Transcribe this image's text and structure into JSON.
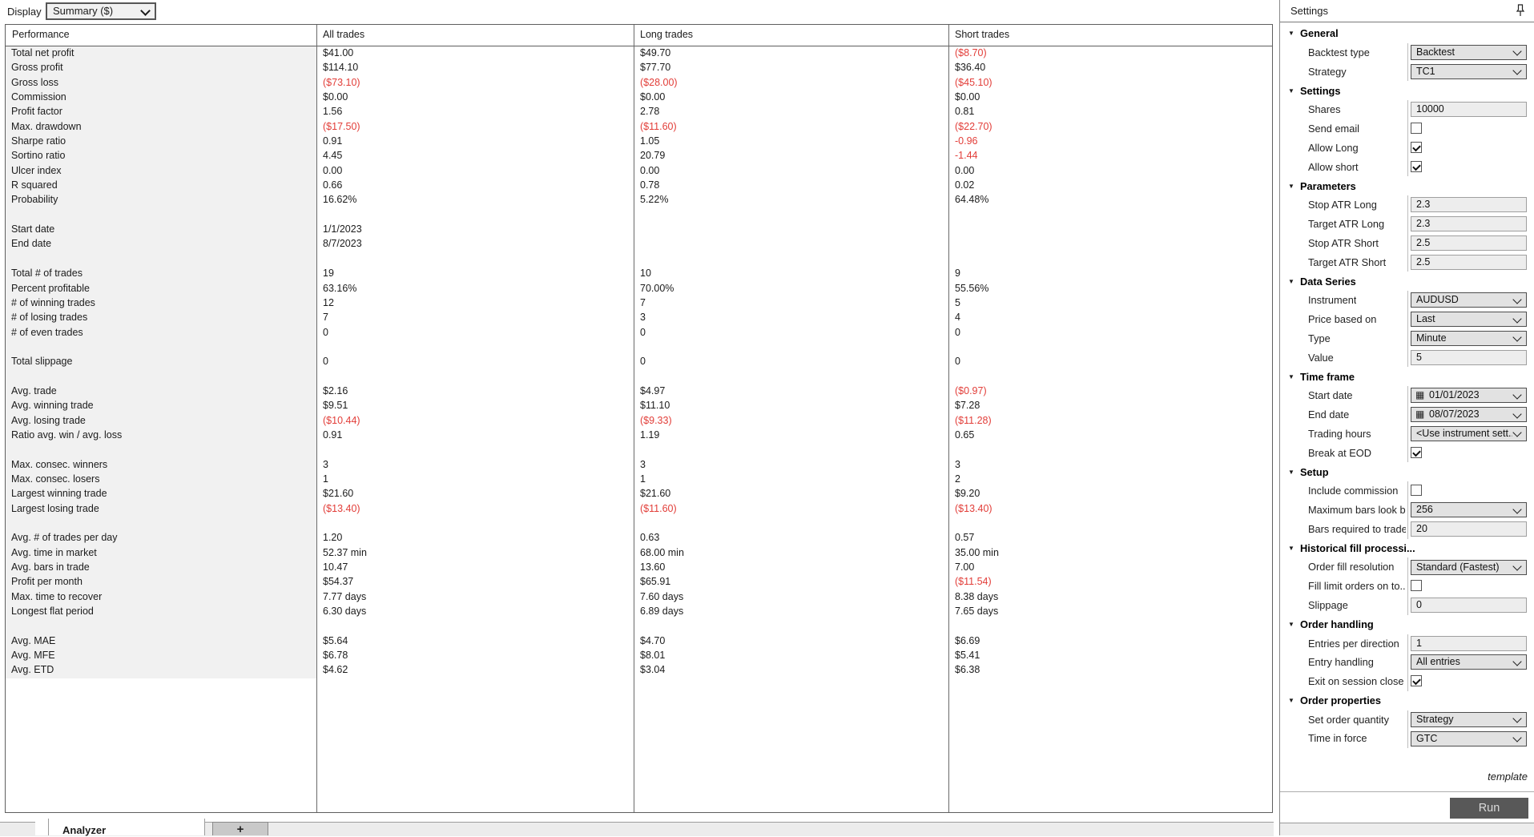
{
  "toolbar": {
    "display_label": "Display",
    "display_value": "Summary ($)"
  },
  "report": {
    "headers": [
      "Performance",
      "All trades",
      "Long trades",
      "Short trades"
    ],
    "rows": [
      {
        "label": "Total net profit",
        "all": "$41.00",
        "long": "$49.70",
        "short": "($8.70)"
      },
      {
        "label": "Gross profit",
        "all": "$114.10",
        "long": "$77.70",
        "short": "$36.40"
      },
      {
        "label": "Gross loss",
        "all": "($73.10)",
        "long": "($28.00)",
        "short": "($45.10)"
      },
      {
        "label": "Commission",
        "all": "$0.00",
        "long": "$0.00",
        "short": "$0.00"
      },
      {
        "label": "Profit factor",
        "all": "1.56",
        "long": "2.78",
        "short": "0.81"
      },
      {
        "label": "Max. drawdown",
        "all": "($17.50)",
        "long": "($11.60)",
        "short": "($22.70)"
      },
      {
        "label": "Sharpe ratio",
        "all": "0.91",
        "long": "1.05",
        "short": "-0.96"
      },
      {
        "label": "Sortino ratio",
        "all": "4.45",
        "long": "20.79",
        "short": "-1.44"
      },
      {
        "label": "Ulcer index",
        "all": "0.00",
        "long": "0.00",
        "short": "0.00"
      },
      {
        "label": "R squared",
        "all": "0.66",
        "long": "0.78",
        "short": "0.02"
      },
      {
        "label": "Probability",
        "all": "16.62%",
        "long": "5.22%",
        "short": "64.48%"
      },
      {
        "spacer": true
      },
      {
        "label": "Start date",
        "all": "1/1/2023",
        "long": "",
        "short": ""
      },
      {
        "label": "End date",
        "all": "8/7/2023",
        "long": "",
        "short": ""
      },
      {
        "spacer": true
      },
      {
        "label": "Total # of trades",
        "all": "19",
        "long": "10",
        "short": "9"
      },
      {
        "label": "Percent profitable",
        "all": "63.16%",
        "long": "70.00%",
        "short": "55.56%"
      },
      {
        "label": "# of winning trades",
        "all": "12",
        "long": "7",
        "short": "5"
      },
      {
        "label": "# of losing trades",
        "all": "7",
        "long": "3",
        "short": "4"
      },
      {
        "label": "# of even trades",
        "all": "0",
        "long": "0",
        "short": "0"
      },
      {
        "spacer": true
      },
      {
        "label": "Total slippage",
        "all": "0",
        "long": "0",
        "short": "0"
      },
      {
        "spacer": true
      },
      {
        "label": "Avg. trade",
        "all": "$2.16",
        "long": "$4.97",
        "short": "($0.97)"
      },
      {
        "label": "Avg. winning trade",
        "all": "$9.51",
        "long": "$11.10",
        "short": "$7.28"
      },
      {
        "label": "Avg. losing trade",
        "all": "($10.44)",
        "long": "($9.33)",
        "short": "($11.28)"
      },
      {
        "label": "Ratio avg. win / avg. loss",
        "all": "0.91",
        "long": "1.19",
        "short": "0.65"
      },
      {
        "spacer": true
      },
      {
        "label": "Max. consec. winners",
        "all": "3",
        "long": "3",
        "short": "3"
      },
      {
        "label": "Max. consec. losers",
        "all": "1",
        "long": "1",
        "short": "2"
      },
      {
        "label": "Largest winning trade",
        "all": "$21.60",
        "long": "$21.60",
        "short": "$9.20"
      },
      {
        "label": "Largest losing trade",
        "all": "($13.40)",
        "long": "($11.60)",
        "short": "($13.40)"
      },
      {
        "spacer": true
      },
      {
        "label": "Avg. # of trades per day",
        "all": "1.20",
        "long": "0.63",
        "short": "0.57"
      },
      {
        "label": "Avg. time in market",
        "all": "52.37 min",
        "long": "68.00 min",
        "short": "35.00 min"
      },
      {
        "label": "Avg. bars in trade",
        "all": "10.47",
        "long": "13.60",
        "short": "7.00"
      },
      {
        "label": "Profit per month",
        "all": "$54.37",
        "long": "$65.91",
        "short": "($11.54)"
      },
      {
        "label": "Max. time to recover",
        "all": "7.77 days",
        "long": "7.60 days",
        "short": "8.38 days"
      },
      {
        "label": "Longest flat period",
        "all": "6.30 days",
        "long": "6.89 days",
        "short": "7.65 days"
      },
      {
        "spacer": true
      },
      {
        "label": "Avg. MAE",
        "all": "$5.64",
        "long": "$4.70",
        "short": "$6.69"
      },
      {
        "label": "Avg. MFE",
        "all": "$6.78",
        "long": "$8.01",
        "short": "$5.41"
      },
      {
        "label": "Avg. ETD",
        "all": "$4.62",
        "long": "$3.04",
        "short": "$6.38"
      }
    ]
  },
  "settings_panel": {
    "title": "Settings",
    "pin_icon": "pin-icon",
    "collapse_glyph": "▼",
    "calendar_glyph": "▦",
    "groups": [
      {
        "label": "General",
        "rows": [
          {
            "label": "Backtest type",
            "control": "select",
            "value": "Backtest"
          },
          {
            "label": "Strategy",
            "control": "select",
            "value": "TC1"
          }
        ]
      },
      {
        "label": "Settings",
        "rows": [
          {
            "label": "Shares",
            "control": "input",
            "value": "10000"
          },
          {
            "label": "Send email",
            "control": "checkbox",
            "checked": false
          },
          {
            "label": "Allow Long",
            "control": "checkbox",
            "checked": true
          },
          {
            "label": "Allow short",
            "control": "checkbox",
            "checked": true
          }
        ]
      },
      {
        "label": "Parameters",
        "rows": [
          {
            "label": "Stop ATR Long",
            "control": "input",
            "value": "2.3"
          },
          {
            "label": "Target ATR Long",
            "control": "input",
            "value": "2.3"
          },
          {
            "label": "Stop ATR Short",
            "control": "input",
            "value": "2.5"
          },
          {
            "label": "Target ATR Short",
            "control": "input",
            "value": "2.5"
          }
        ]
      },
      {
        "label": "Data Series",
        "rows": [
          {
            "label": "Instrument",
            "control": "select",
            "value": "AUDUSD"
          },
          {
            "label": "Price based on",
            "control": "select",
            "value": "Last"
          },
          {
            "label": "Type",
            "control": "select",
            "value": "Minute"
          },
          {
            "label": "Value",
            "control": "input",
            "value": "5"
          }
        ]
      },
      {
        "label": "Time frame",
        "rows": [
          {
            "label": "Start date",
            "control": "date",
            "value": "01/01/2023"
          },
          {
            "label": "End date",
            "control": "date",
            "value": "08/07/2023"
          },
          {
            "label": "Trading hours",
            "control": "select",
            "value": "<Use instrument sett..."
          },
          {
            "label": "Break at EOD",
            "control": "checkbox",
            "checked": true
          }
        ]
      },
      {
        "label": "Setup",
        "rows": [
          {
            "label": "Include commission",
            "control": "checkbox",
            "checked": false
          },
          {
            "label": "Maximum bars look b...",
            "control": "select",
            "value": "256"
          },
          {
            "label": "Bars required to trade",
            "control": "input",
            "value": "20"
          }
        ]
      },
      {
        "label": "Historical fill processi...",
        "rows": [
          {
            "label": "Order fill resolution",
            "control": "select",
            "value": "Standard (Fastest)"
          },
          {
            "label": "Fill limit orders on to...",
            "control": "checkbox",
            "checked": false
          },
          {
            "label": "Slippage",
            "control": "input",
            "value": "0"
          }
        ]
      },
      {
        "label": "Order handling",
        "rows": [
          {
            "label": "Entries per direction",
            "control": "input",
            "value": "1"
          },
          {
            "label": "Entry handling",
            "control": "select",
            "value": "All entries"
          },
          {
            "label": "Exit on session close",
            "control": "checkbox",
            "checked": true
          }
        ]
      },
      {
        "label": "Order properties",
        "rows": [
          {
            "label": "Set order quantity",
            "control": "select",
            "value": "Strategy"
          },
          {
            "label": "Time in force",
            "control": "select",
            "value": "GTC"
          }
        ]
      }
    ],
    "template_link": "template",
    "run_label": "Run"
  },
  "tabs": {
    "analyzer_label": "Analyzer",
    "add_label": "+"
  },
  "colors": {
    "negative_value": "#e23d38",
    "run_button": "#585858",
    "column_header_bg": "#f1f1f1"
  }
}
